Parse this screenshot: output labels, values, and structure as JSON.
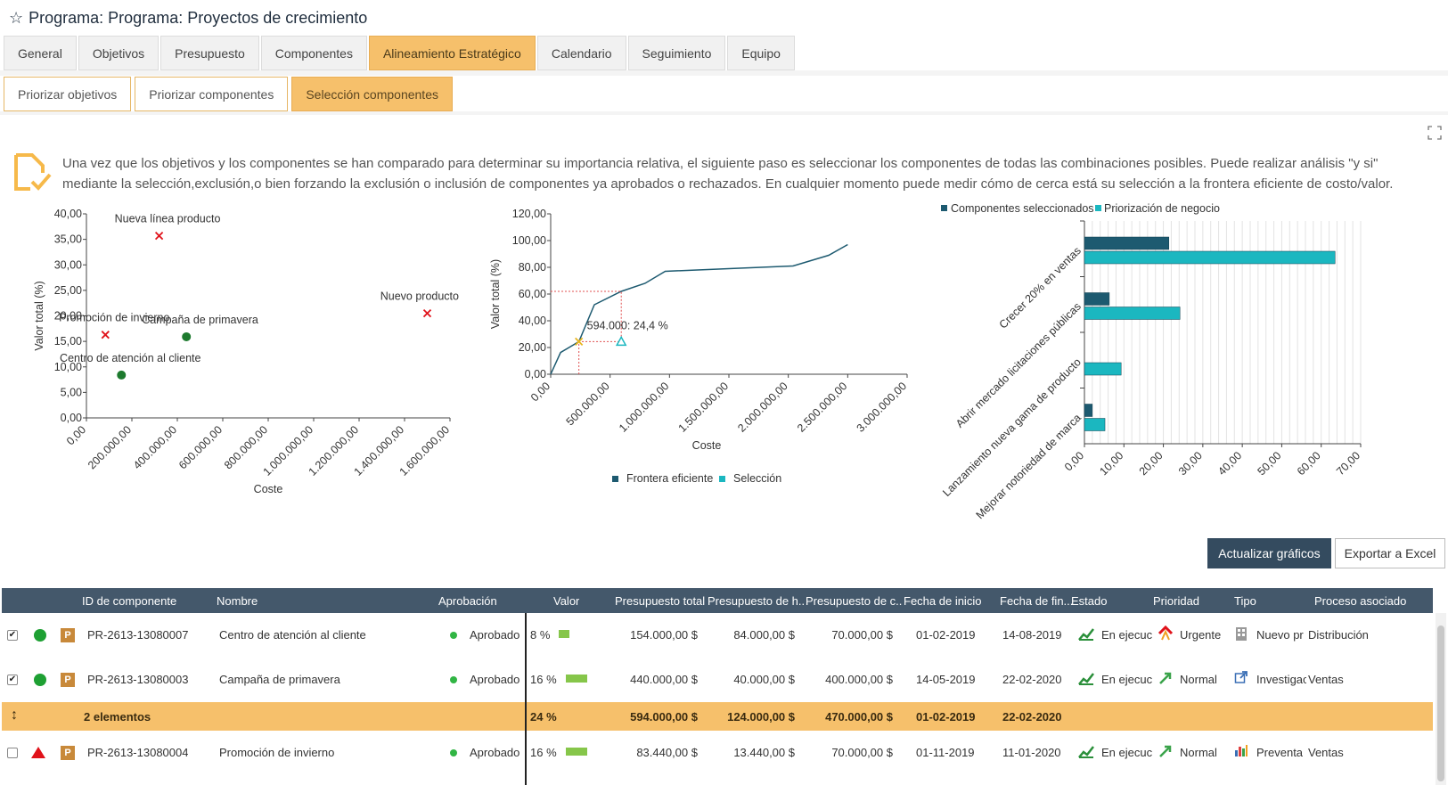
{
  "header": {
    "title": "Programa: Programa: Proyectos de crecimiento"
  },
  "tabs": [
    "General",
    "Objetivos",
    "Presupuesto",
    "Componentes",
    "Alineamiento Estratégico",
    "Calendario",
    "Seguimiento",
    "Equipo"
  ],
  "active_tab": "Alineamiento Estratégico",
  "subtabs": [
    "Priorizar objetivos",
    "Priorizar componentes",
    "Selección componentes"
  ],
  "active_subtab": "Selección componentes",
  "intro": {
    "line1": "Una vez que los objetivos y los componentes se han comparado para determinar su importancia relativa, el siguiente paso es seleccionar los componentes de todas las combinaciones posibles. Puede realizar análisis \"y si\"",
    "line2": "mediante la selección,exclusión,o bien forzando la exclusión o inclusión de componentes ya aprobados o rechazados. En cualquier momento puede medir cómo de cerca está su selección a la frontera eficiente de costo/valor."
  },
  "chart_data": [
    {
      "type": "scatter",
      "xlabel": "Coste",
      "ylabel": "Valor total (%)",
      "xlim": [
        0,
        1600000
      ],
      "ylim": [
        0,
        40
      ],
      "x_ticks": [
        "0,00",
        "200.000,00",
        "400.000,00",
        "600.000,00",
        "800.000,00",
        "1.000.000,00",
        "1.200.000,00",
        "1.400.000,00",
        "1.600.000,00"
      ],
      "y_ticks": [
        "0,00",
        "5,00",
        "10,00",
        "15,00",
        "20,00",
        "25,00",
        "30,00",
        "35,00",
        "40,00"
      ],
      "points": [
        {
          "label": "Nueva línea producto",
          "x": 320000,
          "y": 35.7,
          "marker": "x",
          "color": "#e0121a"
        },
        {
          "label": "Nuevo producto",
          "x": 1500000,
          "y": 20.5,
          "marker": "x",
          "color": "#e0121a"
        },
        {
          "label": "Promoción de invierno",
          "x": 83440,
          "y": 16.3,
          "marker": "x",
          "color": "#e0121a"
        },
        {
          "label": "Campaña de primavera",
          "x": 440000,
          "y": 15.9,
          "marker": "dot",
          "color": "#1d7a2e"
        },
        {
          "label": "Centro de atención al cliente",
          "x": 154000,
          "y": 8.4,
          "marker": "dot",
          "color": "#1d7a2e"
        }
      ]
    },
    {
      "type": "line",
      "xlabel": "Coste",
      "ylabel": "Valor total (%)",
      "xlim": [
        0,
        3000000
      ],
      "ylim": [
        0,
        120
      ],
      "x_ticks": [
        "0,00",
        "500.000,00",
        "1.000.000,00",
        "1.500.000,00",
        "2.000.000,00",
        "2.500.000,00",
        "3.000.000,00"
      ],
      "y_ticks": [
        "0,00",
        "20,00",
        "40,00",
        "60,00",
        "80,00",
        "100,00",
        "120,00"
      ],
      "series": [
        {
          "name": "Frontera eficiente",
          "color": "#1d5a70",
          "x": [
            0,
            83440,
            237440,
            367440,
            594000,
            794000,
            964000,
            1500000,
            2040000,
            2340000,
            2500000
          ],
          "y": [
            0,
            16.3,
            24.4,
            52,
            62,
            68,
            77,
            79,
            81,
            89,
            97
          ]
        },
        {
          "name": "Selección",
          "color": "#1bb7c0",
          "x": [
            594000
          ],
          "y": [
            24.4
          ]
        }
      ],
      "annotation": "594.000: 24,4 %",
      "highlight": {
        "x": 237440,
        "y": 24.4
      }
    },
    {
      "type": "bar",
      "orientation": "horizontal",
      "categories": [
        "Crecer 20% en ventas",
        "Abrir mercado licitaciones públicas",
        "Lanzamiento nueva gama de producto",
        "Mejorar notoriedad de marca"
      ],
      "x_ticks": [
        "0,00",
        "10,00",
        "20,00",
        "30,00",
        "40,00",
        "50,00",
        "60,00",
        "70,00"
      ],
      "xlim": [
        0,
        70
      ],
      "series": [
        {
          "name": "Componentes seleccionados",
          "color": "#1d5a70",
          "values": [
            21.4,
            6.3,
            0,
            2
          ]
        },
        {
          "name": "Priorización de negocio",
          "color": "#1bb7c0",
          "values": [
            63.5,
            24.2,
            9.3,
            5.2
          ]
        }
      ]
    }
  ],
  "buttons": {
    "update": "Actualizar gráficos",
    "export": "Exportar a Excel"
  },
  "table": {
    "columns": [
      "ID de componente",
      "Nombre",
      "Aprobación",
      "Valor",
      "Presupuesto total",
      "Presupuesto de h...",
      "Presupuesto de c...",
      "Fecha de inicio",
      "Fecha de fin...",
      "Estado",
      "Prioridad",
      "Tipo",
      "Proceso asociado"
    ],
    "rows": [
      {
        "checked": "✔",
        "id": "PR-2613-13080007",
        "name": "Centro de atención al cliente",
        "approval": "Aprobado",
        "value": "8 %",
        "value_pct": 8,
        "total": "154.000,00 $",
        "h": "84.000,00 $",
        "c": "70.000,00 $",
        "start": "01-02-2019",
        "end": "14-08-2019",
        "status": "En ejecuc",
        "priority": "Urgente",
        "type": "Nuevo pr",
        "process": "Distribución",
        "health": "green"
      },
      {
        "checked": "✔",
        "id": "PR-2613-13080003",
        "name": "Campaña de primavera",
        "approval": "Aprobado",
        "value": "16 %",
        "value_pct": 16,
        "total": "440.000,00 $",
        "h": "40.000,00 $",
        "c": "400.000,00 $",
        "start": "14-05-2019",
        "end": "22-02-2020",
        "status": "En ejecuc",
        "priority": "Normal",
        "type": "Investigac",
        "process": "Ventas",
        "health": "green"
      },
      {
        "checked": "",
        "id": "PR-2613-13080004",
        "name": "Promoción de invierno",
        "approval": "Aprobado",
        "value": "16 %",
        "value_pct": 16,
        "total": "83.440,00 $",
        "h": "13.440,00 $",
        "c": "70.000,00 $",
        "start": "01-11-2019",
        "end": "11-01-2020",
        "status": "En ejecuc",
        "priority": "Normal",
        "type": "Preventa",
        "process": "Ventas",
        "health": "red"
      }
    ],
    "group": {
      "icon": "↕",
      "label": "2 elementos",
      "value": "24 %",
      "total": "594.000,00 $",
      "h": "124.000,00 $",
      "c": "470.000,00 $",
      "start": "01-02-2019",
      "end": "22-02-2020"
    },
    "p_badge": "P"
  }
}
